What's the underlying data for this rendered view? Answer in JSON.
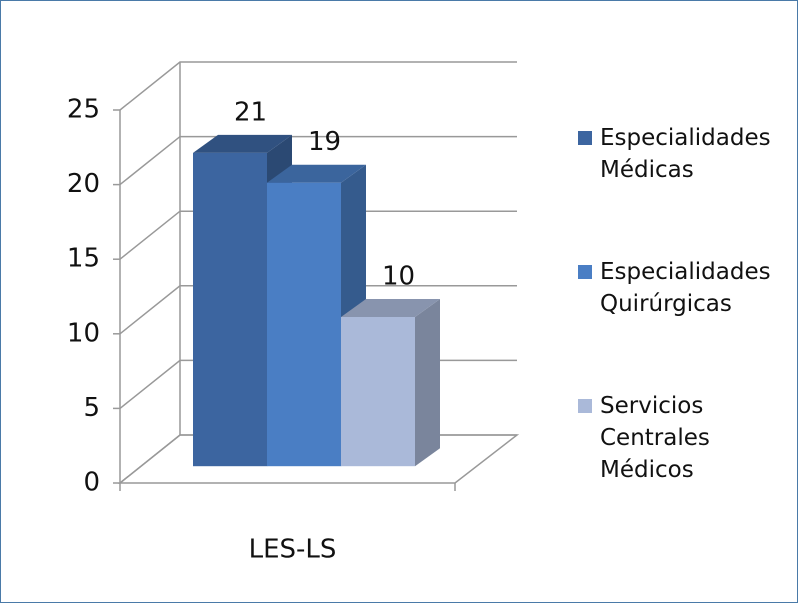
{
  "chart_data": {
    "type": "bar3d",
    "categories": [
      "LES-LS"
    ],
    "series": [
      {
        "name": "Especialidades Médicas",
        "color": "#3c65a0",
        "values": [
          21
        ]
      },
      {
        "name": "Especialidades Quirúrgicas",
        "color": "#4a7ec4",
        "values": [
          19
        ]
      },
      {
        "name": "Servicios Centrales Médicos",
        "color": "#aab9d9",
        "values": [
          10
        ]
      }
    ],
    "ylim": [
      0,
      25
    ],
    "yticks": [
      0,
      5,
      10,
      15,
      20,
      25
    ],
    "grid": true,
    "legend": "right"
  }
}
